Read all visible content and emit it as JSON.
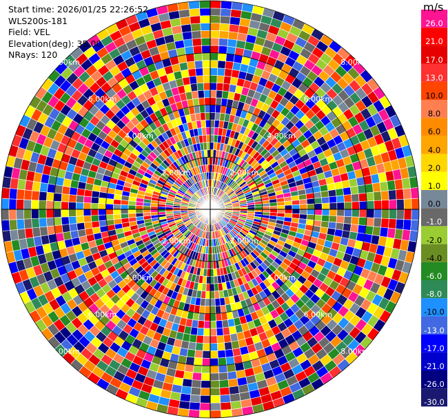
{
  "header": {
    "start_time": "Start time: 2026/01/25 22:26:52",
    "station": "WLS200s-181",
    "field": "Field: VEL",
    "elevation": "Elevation(deg): 35.00",
    "nrays": "NRays: 120"
  },
  "colorbar": {
    "unit": "m/s",
    "labels": [
      "26.0",
      "21.0",
      "17.0",
      "13.0",
      "10.0",
      "8.0",
      "6.0",
      "4.0",
      "2.0",
      "1.0",
      "0.0",
      "-1.0",
      "-2.0",
      "-4.0",
      "-6.0",
      "-8.0",
      "-10.0",
      "-13.0",
      "-17.0",
      "-21.0",
      "-26.0",
      "-30.0"
    ],
    "colors": [
      "#ff1493",
      "#ff0000",
      "#e60000",
      "#ff3030",
      "#ff4500",
      "#ff7f50",
      "#ff8c00",
      "#ffa500",
      "#ffd700",
      "#ffff00",
      "#778899",
      "#696969",
      "#9acd32",
      "#6b8e23",
      "#228b22",
      "#2e8b57",
      "#1e90ff",
      "#4169e1",
      "#0000ff",
      "#0000cd",
      "#000080",
      "#191970"
    ]
  },
  "chart_data": {
    "type": "heatmap",
    "projection": "polar-ppi",
    "field": "VEL",
    "units": "m/s",
    "rays": 120,
    "vmin": -30.0,
    "vmax": 26.0,
    "range_ring_labels": [
      "2.00km",
      "4.00km",
      "6.00km",
      "8.00km"
    ],
    "grid": true,
    "values_note": "per-gate velocities not individually legible"
  }
}
